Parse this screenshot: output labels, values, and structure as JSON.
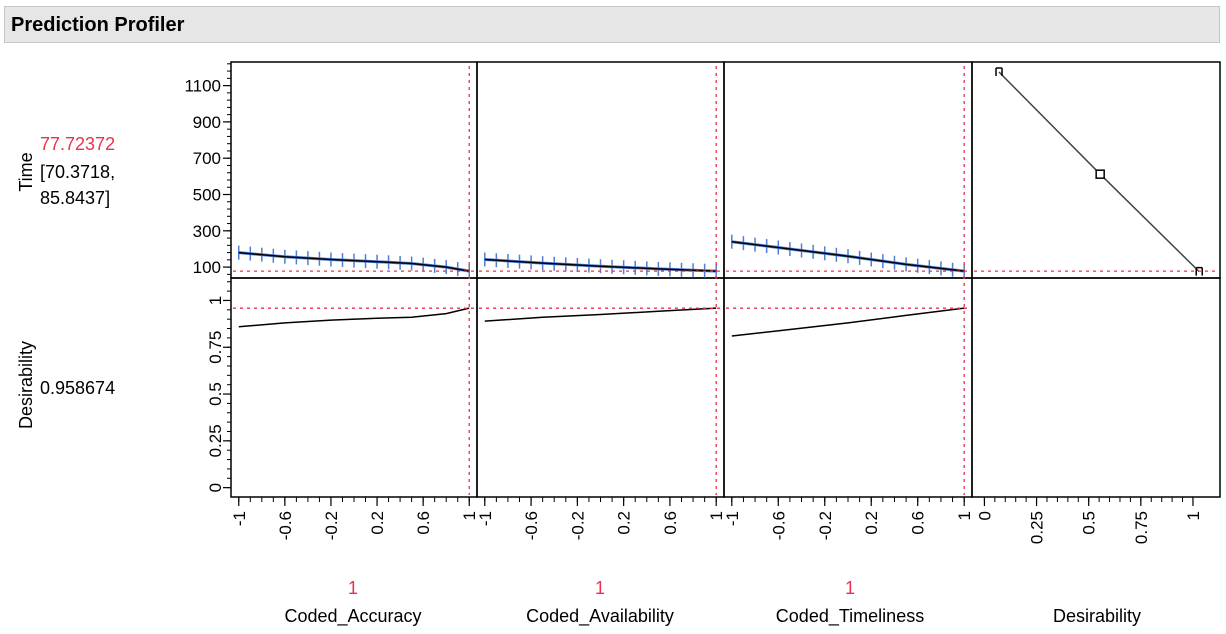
{
  "panel": {
    "title": "Prediction Profiler"
  },
  "colors": {
    "current_value": "#e8334e",
    "crosshair": "#e8334e",
    "ci_band": "#4f7fd6",
    "curve": "#000000",
    "frame": "#000000"
  },
  "chart_data": {
    "type": "line",
    "responses": [
      {
        "name": "Time",
        "value": "77.72372",
        "ci_lower": "[70.3718,",
        "ci_upper": "85.8437]",
        "current": 77.72372,
        "ylim": [
          40,
          1230
        ],
        "ticks": [
          100,
          300,
          500,
          700,
          900,
          1100
        ],
        "tick_labels": [
          "100",
          "300",
          "500",
          "700",
          "900",
          "1100"
        ]
      },
      {
        "name": "Desirability",
        "value": "0.958674",
        "current": 0.958674,
        "ylim": [
          -0.05,
          1.12
        ],
        "ticks": [
          0,
          0.25,
          0.5,
          0.75,
          1
        ],
        "tick_labels": [
          "0",
          "0.25",
          "0.5",
          "0.75",
          "1"
        ]
      }
    ],
    "factors": [
      {
        "name": "Coded_Accuracy",
        "value": "1",
        "current": 1,
        "xlim": [
          -1.05,
          1.05
        ],
        "ticks": [
          -1,
          -0.6,
          -0.2,
          0.2,
          0.6,
          1
        ],
        "tick_labels": [
          "-1",
          "-0.6",
          "-0.2",
          "0.2",
          "0.6",
          "1"
        ],
        "time_curve": {
          "x": [
            -1,
            -0.6,
            -0.2,
            0.2,
            0.5,
            0.8,
            1
          ],
          "y": [
            180,
            157,
            142,
            130,
            120,
            100,
            78
          ]
        },
        "desirability_curve": {
          "x": [
            -1,
            -0.6,
            -0.2,
            0.2,
            0.5,
            0.8,
            1
          ],
          "y": [
            0.86,
            0.88,
            0.895,
            0.905,
            0.91,
            0.93,
            0.959
          ]
        }
      },
      {
        "name": "Coded_Availability",
        "value": "1",
        "current": 1,
        "xlim": [
          -1.05,
          1.05
        ],
        "ticks": [
          -1,
          -0.6,
          -0.2,
          0.2,
          0.6,
          1
        ],
        "tick_labels": [
          "-1",
          "-0.6",
          "-0.2",
          "0.2",
          "0.6",
          "1"
        ],
        "time_curve": {
          "x": [
            -1,
            -0.5,
            0,
            0.5,
            1
          ],
          "y": [
            142,
            122,
            105,
            90,
            78
          ]
        },
        "desirability_curve": {
          "x": [
            -1,
            -0.5,
            0,
            0.5,
            1
          ],
          "y": [
            0.89,
            0.91,
            0.925,
            0.942,
            0.959
          ]
        }
      },
      {
        "name": "Coded_Timeliness",
        "value": "1",
        "current": 1,
        "xlim": [
          -1.05,
          1.05
        ],
        "ticks": [
          -1,
          -0.6,
          -0.2,
          0.2,
          0.6,
          1
        ],
        "tick_labels": [
          "-1",
          "-0.6",
          "-0.2",
          "0.2",
          "0.6",
          "1"
        ],
        "time_curve": {
          "x": [
            -1,
            -0.5,
            0,
            0.5,
            1
          ],
          "y": [
            240,
            200,
            160,
            115,
            78
          ]
        },
        "desirability_curve": {
          "x": [
            -1,
            -0.5,
            0,
            0.5,
            1
          ],
          "y": [
            0.81,
            0.845,
            0.88,
            0.92,
            0.959
          ]
        }
      }
    ],
    "desirability_function": {
      "name": "Desirability",
      "xlim": [
        -0.05,
        1.12
      ],
      "ticks": [
        0,
        0.25,
        0.5,
        0.75,
        1
      ],
      "tick_labels": [
        "0",
        "0.25",
        "0.5",
        "0.75",
        "1"
      ],
      "x": [
        0.07,
        0.555,
        1.03
      ],
      "y": [
        1175,
        612,
        75
      ]
    }
  }
}
